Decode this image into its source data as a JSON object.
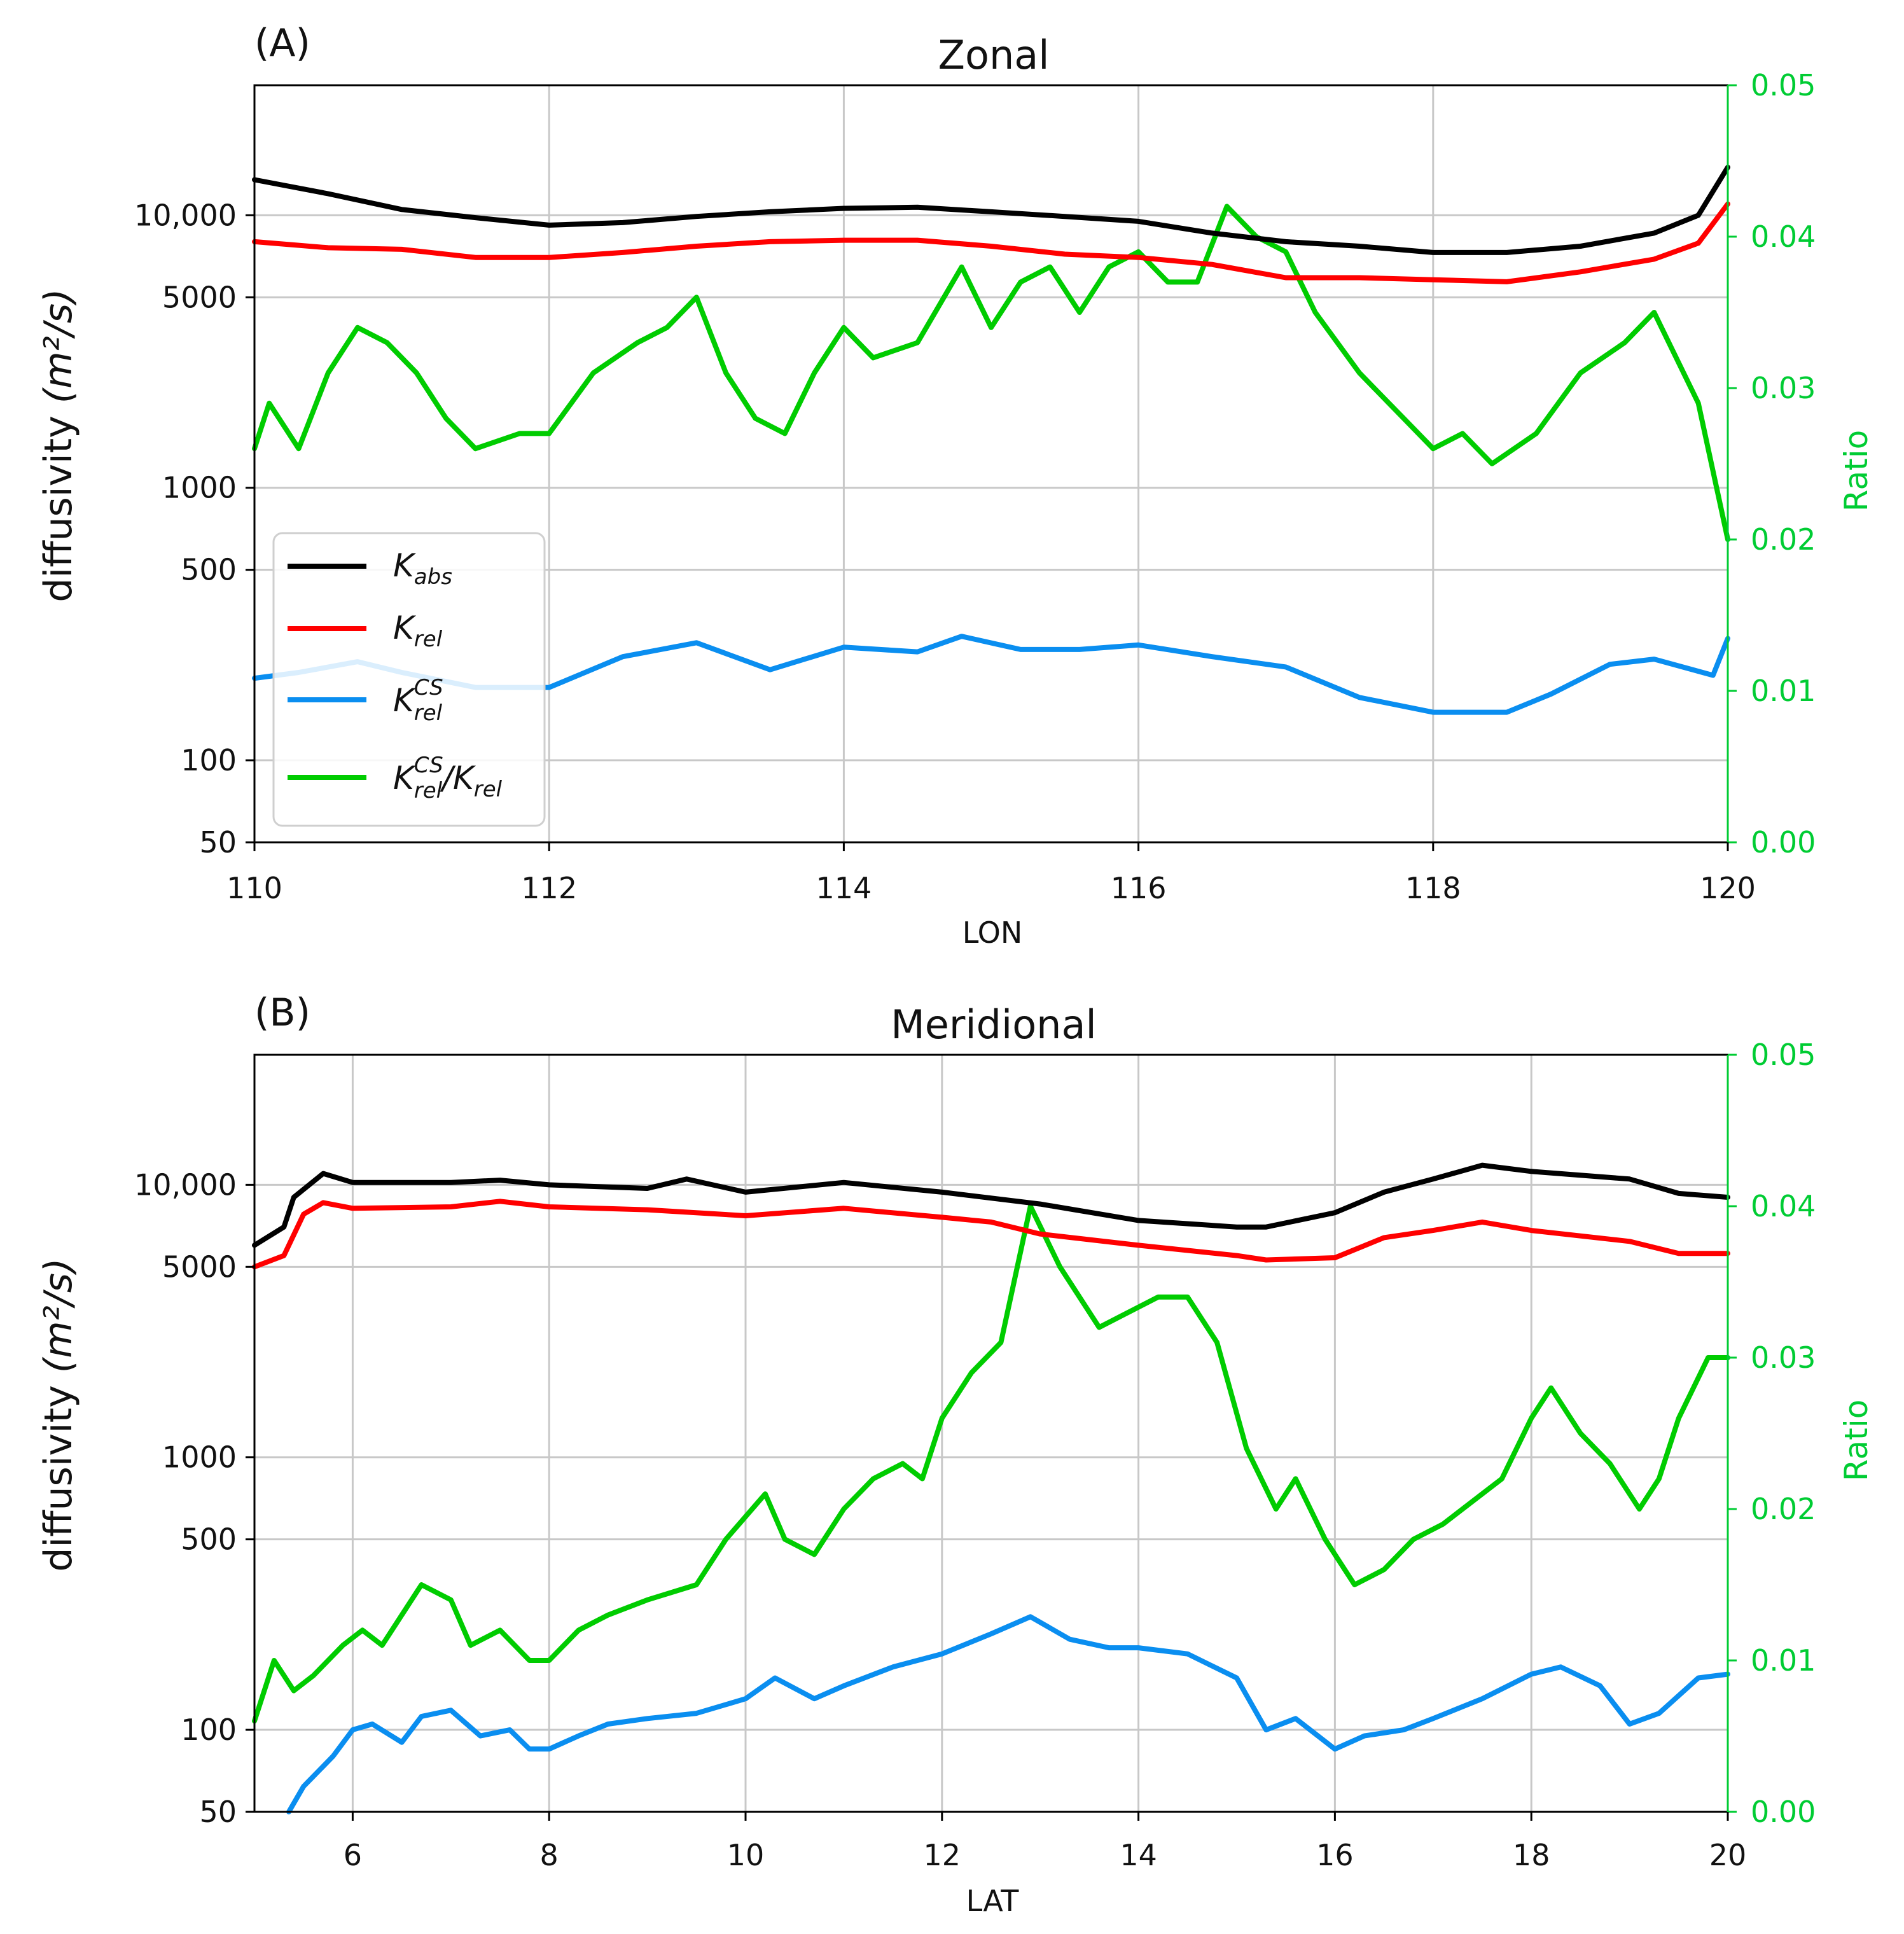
{
  "chart_data": [
    {
      "type": "line",
      "panel_label": "(A)",
      "title": "Zonal",
      "xlabel": "LON",
      "ylabel_text": "diffusivity ",
      "ylabel_units": "(m²/s)",
      "y2label": "Ratio",
      "xlim": [
        110,
        120
      ],
      "xticks": [
        "110",
        "112",
        "114",
        "116",
        "118",
        "120"
      ],
      "ylim": [
        50,
        30000
      ],
      "yscale": "log",
      "yticks": [
        {
          "label": "10,000",
          "value": 10000
        },
        {
          "label": "5000",
          "value": 5000
        },
        {
          "label": "1000",
          "value": 1000
        },
        {
          "label": "500",
          "value": 500
        },
        {
          "label": "100",
          "value": 100
        },
        {
          "label": "50",
          "value": 50
        }
      ],
      "y2lim": [
        0,
        0.05
      ],
      "y2ticks": [
        "0.05",
        "0.04",
        "0.03",
        "0.02",
        "0.01",
        "0.00"
      ],
      "grid": true,
      "legend_position": "lower-left",
      "series": [
        {
          "key": "K_abs",
          "axis": "left",
          "color": "#000000",
          "x": [
            110,
            110.5,
            111,
            111.5,
            112,
            112.5,
            113,
            113.5,
            114,
            114.5,
            115,
            115.5,
            116,
            116.5,
            117,
            117.5,
            118,
            118.5,
            119,
            119.5,
            119.8,
            120
          ],
          "y": [
            13500,
            12000,
            10500,
            9800,
            9200,
            9400,
            9900,
            10300,
            10600,
            10700,
            10300,
            9900,
            9500,
            8600,
            8000,
            7700,
            7300,
            7300,
            7700,
            8600,
            10000,
            15000
          ]
        },
        {
          "key": "K_rel",
          "axis": "left",
          "color": "#ff0000",
          "x": [
            110,
            110.5,
            111,
            111.5,
            112,
            112.5,
            113,
            113.5,
            114,
            114.5,
            115,
            115.5,
            116,
            116.5,
            117,
            117.5,
            118,
            118.5,
            119,
            119.5,
            119.8,
            120
          ],
          "y": [
            8000,
            7600,
            7500,
            7000,
            7000,
            7300,
            7700,
            8000,
            8100,
            8100,
            7700,
            7200,
            7000,
            6600,
            5900,
            5900,
            5800,
            5700,
            6200,
            6900,
            7900,
            11000
          ]
        },
        {
          "key": "K_rel_CS",
          "axis": "left",
          "color": "#0a8ef0",
          "x": [
            110,
            110.3,
            110.7,
            111,
            111.5,
            112,
            112.5,
            113,
            113.5,
            114,
            114.5,
            114.8,
            115.2,
            115.6,
            116,
            116.5,
            117,
            117.5,
            118,
            118.5,
            118.8,
            119.2,
            119.5,
            119.9,
            120
          ],
          "y": [
            200,
            210,
            230,
            210,
            185,
            185,
            240,
            270,
            215,
            260,
            250,
            285,
            255,
            255,
            265,
            240,
            220,
            170,
            150,
            150,
            175,
            225,
            235,
            205,
            280
          ]
        },
        {
          "key": "ratio",
          "axis": "right",
          "color": "#00cc00",
          "x": [
            110,
            110.1,
            110.3,
            110.5,
            110.7,
            110.9,
            111.1,
            111.3,
            111.5,
            111.8,
            112,
            112.3,
            112.6,
            112.8,
            113,
            113.2,
            113.4,
            113.6,
            113.8,
            114,
            114.2,
            114.5,
            114.8,
            115,
            115.2,
            115.4,
            115.6,
            115.8,
            116,
            116.2,
            116.4,
            116.6,
            116.8,
            117,
            117.2,
            117.5,
            117.8,
            118,
            118.2,
            118.4,
            118.7,
            119,
            119.3,
            119.5,
            119.8,
            120
          ],
          "y": [
            0.026,
            0.029,
            0.026,
            0.031,
            0.034,
            0.033,
            0.031,
            0.028,
            0.026,
            0.027,
            0.027,
            0.031,
            0.033,
            0.034,
            0.036,
            0.031,
            0.028,
            0.027,
            0.031,
            0.034,
            0.032,
            0.033,
            0.038,
            0.034,
            0.037,
            0.038,
            0.035,
            0.038,
            0.039,
            0.037,
            0.037,
            0.042,
            0.04,
            0.039,
            0.035,
            0.031,
            0.028,
            0.026,
            0.027,
            0.025,
            0.027,
            0.031,
            0.033,
            0.035,
            0.029,
            0.02
          ]
        }
      ]
    },
    {
      "type": "line",
      "panel_label": "(B)",
      "title": "Meridional",
      "xlabel": "LAT",
      "ylabel_text": "diffusivity ",
      "ylabel_units": "(m²/s)",
      "y2label": "Ratio",
      "xlim": [
        5,
        20
      ],
      "xticks": [
        "6",
        "8",
        "10",
        "12",
        "14",
        "16",
        "18",
        "20"
      ],
      "ylim": [
        50,
        30000
      ],
      "yscale": "log",
      "yticks": [
        {
          "label": "10,000",
          "value": 10000
        },
        {
          "label": "5000",
          "value": 5000
        },
        {
          "label": "1000",
          "value": 1000
        },
        {
          "label": "500",
          "value": 500
        },
        {
          "label": "100",
          "value": 100
        },
        {
          "label": "50",
          "value": 50
        }
      ],
      "y2lim": [
        0,
        0.05
      ],
      "y2ticks": [
        "0.05",
        "0.04",
        "0.03",
        "0.02",
        "0.01",
        "0.00"
      ],
      "grid": true,
      "series": [
        {
          "key": "K_abs",
          "axis": "left",
          "color": "#000000",
          "x": [
            5,
            5.3,
            5.4,
            5.7,
            6,
            7,
            7.5,
            8,
            9,
            9.4,
            10,
            11,
            12,
            13,
            14,
            15,
            15.3,
            16,
            16.5,
            17,
            17.5,
            18,
            19,
            19.5,
            20
          ],
          "y": [
            6000,
            7000,
            9000,
            11000,
            10200,
            10200,
            10400,
            10000,
            9700,
            10500,
            9400,
            10200,
            9400,
            8500,
            7400,
            7000,
            7000,
            7900,
            9400,
            10500,
            11800,
            11200,
            10500,
            9300,
            9000
          ]
        },
        {
          "key": "K_rel",
          "axis": "left",
          "color": "#ff0000",
          "x": [
            5,
            5.3,
            5.5,
            5.7,
            6,
            7,
            7.5,
            8,
            9,
            10,
            11,
            12,
            12.5,
            13,
            14,
            15,
            15.3,
            16,
            16.5,
            17,
            17.5,
            18,
            19,
            19.5,
            20
          ],
          "y": [
            5000,
            5500,
            7800,
            8600,
            8200,
            8300,
            8700,
            8300,
            8100,
            7700,
            8200,
            7600,
            7300,
            6600,
            6000,
            5500,
            5300,
            5400,
            6400,
            6800,
            7300,
            6800,
            6200,
            5600,
            5600
          ]
        },
        {
          "key": "K_rel_CS",
          "axis": "left",
          "color": "#0a8ef0",
          "x": [
            5.35,
            5.5,
            5.8,
            6,
            6.2,
            6.5,
            6.7,
            7,
            7.3,
            7.6,
            7.8,
            8,
            8.3,
            8.6,
            9,
            9.5,
            10,
            10.3,
            10.7,
            11,
            11.5,
            12,
            12.5,
            12.9,
            13.3,
            13.7,
            14,
            14.5,
            15,
            15.3,
            15.6,
            16,
            16.3,
            16.7,
            17,
            17.5,
            18,
            18.3,
            18.7,
            19,
            19.3,
            19.7,
            20
          ],
          "y": [
            50,
            62,
            80,
            100,
            105,
            90,
            112,
            118,
            95,
            100,
            85,
            85,
            95,
            105,
            110,
            115,
            130,
            155,
            130,
            145,
            170,
            190,
            225,
            260,
            215,
            200,
            200,
            190,
            155,
            100,
            110,
            85,
            95,
            100,
            110,
            130,
            160,
            170,
            145,
            105,
            115,
            155,
            160
          ]
        },
        {
          "key": "ratio",
          "axis": "right",
          "color": "#00cc00",
          "x": [
            5,
            5.2,
            5.4,
            5.6,
            5.9,
            6.1,
            6.3,
            6.5,
            6.7,
            7,
            7.2,
            7.5,
            7.8,
            8,
            8.3,
            8.6,
            9,
            9.5,
            9.8,
            10.2,
            10.4,
            10.7,
            11,
            11.3,
            11.6,
            11.8,
            12,
            12.3,
            12.6,
            12.9,
            13.2,
            13.6,
            13.9,
            14.2,
            14.5,
            14.8,
            15.1,
            15.4,
            15.6,
            15.9,
            16.2,
            16.5,
            16.8,
            17.1,
            17.5,
            17.7,
            18,
            18.2,
            18.5,
            18.8,
            19.1,
            19.3,
            19.5,
            19.8,
            20
          ],
          "y": [
            0.006,
            0.01,
            0.008,
            0.009,
            0.011,
            0.012,
            0.011,
            0.013,
            0.015,
            0.014,
            0.011,
            0.012,
            0.01,
            0.01,
            0.012,
            0.013,
            0.014,
            0.015,
            0.018,
            0.021,
            0.018,
            0.017,
            0.02,
            0.022,
            0.023,
            0.022,
            0.026,
            0.029,
            0.031,
            0.04,
            0.036,
            0.032,
            0.033,
            0.034,
            0.034,
            0.031,
            0.024,
            0.02,
            0.022,
            0.018,
            0.015,
            0.016,
            0.018,
            0.019,
            0.021,
            0.022,
            0.026,
            0.028,
            0.025,
            0.023,
            0.02,
            0.022,
            0.026,
            0.03,
            0.03
          ]
        }
      ]
    }
  ]
}
